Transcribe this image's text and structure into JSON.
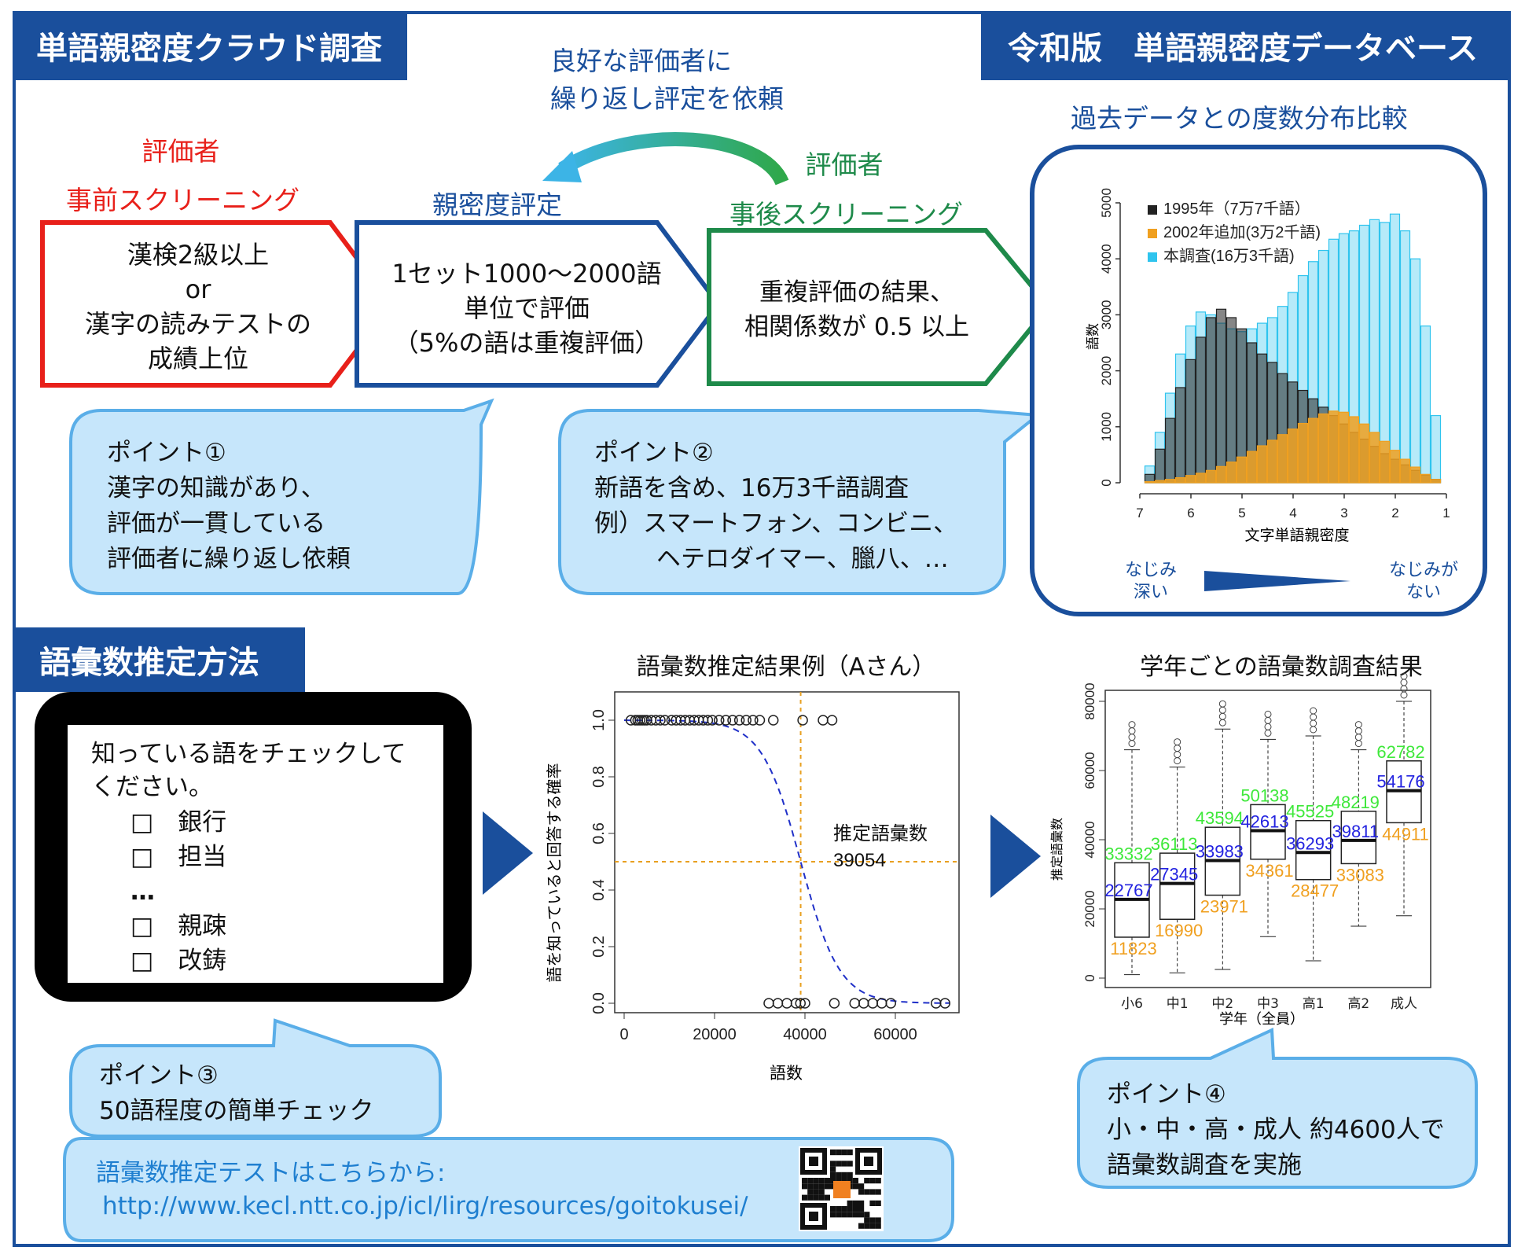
{
  "headers": {
    "crowd_survey": "単語親密度クラウド調査",
    "database": "令和版　単語親密度データベース",
    "vocab_method": "語彙数推定方法"
  },
  "flow": {
    "loop_note": [
      "良好な評価者に",
      "繰り返し評定を依頼"
    ],
    "step1": {
      "label_top": "評価者",
      "label": "事前スクリーニング",
      "lines": [
        "漢検2級以上",
        "or",
        "漢字の読みテストの",
        "成績上位"
      ]
    },
    "step2": {
      "label": "親密度評定",
      "lines": [
        "1セット1000～2000語",
        "単位で評価",
        "（5%の語は重複評価）"
      ]
    },
    "step3": {
      "label_top": "評価者",
      "label": "事後スクリーニング",
      "lines": [
        "重複評価の結果、",
        "相関係数が 0.5 以上"
      ]
    }
  },
  "points": {
    "p1": [
      "ポイント①",
      "漢字の知識があり、",
      "評価が一貫している",
      "評価者に繰り返し依頼"
    ],
    "p2": [
      "ポイント②",
      "新語を含め、16万3千語調査",
      "例）スマートフォン、コンビニ、",
      "　ヘテロダイマー、臘八、…"
    ],
    "p3": [
      "ポイント③",
      "50語程度の簡単チェック"
    ],
    "p4": [
      "ポイント④",
      "小・中・高・成人 約4600人で",
      "語彙数調査を実施"
    ]
  },
  "hist_panel": {
    "caption": "過去データとの度数分布比較",
    "left_note": [
      "なじみ",
      "深い"
    ],
    "right_note": [
      "なじみが",
      "ない"
    ]
  },
  "checklist": {
    "prompt": [
      "知っている語をチェックして",
      "ください。"
    ],
    "items": [
      "□　銀行",
      "□　担当",
      "…",
      "□　親疎",
      "□　改鋳"
    ]
  },
  "link_box": {
    "label": "語彙数推定テストはこちらから:",
    "url": "http://www.kecl.ntt.co.jp/icl/lirg/resources/goitokusei/"
  },
  "colors": {
    "navy": "#1a4f9c",
    "red": "#e8201a",
    "green": "#1e8a4a",
    "callout_fill": "#c6e6fb",
    "callout_border": "#5aaee8",
    "hist_black": "#222222",
    "hist_orange": "#f0a020",
    "hist_cyan": "#2fc4ee"
  },
  "chart_data": [
    {
      "type": "bar",
      "xlabel": "文字単語親密度",
      "ylabel": "語数",
      "x_ticks": [
        "7",
        "6",
        "5",
        "4",
        "3",
        "2",
        "1"
      ],
      "y_ticks": [
        "0",
        "1000",
        "2000",
        "3000",
        "4000",
        "5000"
      ],
      "ylim": [
        0,
        5000
      ],
      "x_reversed": true,
      "legend_position": "top-left",
      "series": [
        {
          "name": "1995年（7万7千語）",
          "color": "#222222",
          "x": [
            6.8,
            6.6,
            6.4,
            6.2,
            6.0,
            5.8,
            5.6,
            5.4,
            5.2,
            5.0,
            4.8,
            4.6,
            4.4,
            4.2,
            4.0,
            3.8,
            3.6,
            3.4,
            3.2,
            3.0,
            2.8,
            2.6,
            2.4,
            2.2,
            2.0,
            1.8,
            1.6,
            1.4,
            1.2
          ],
          "values": [
            150,
            600,
            1150,
            1700,
            2200,
            2600,
            2950,
            3100,
            2950,
            2750,
            2500,
            2300,
            2150,
            1950,
            1800,
            1650,
            1500,
            1350,
            1200,
            1050,
            900,
            780,
            650,
            520,
            420,
            320,
            220,
            140,
            60
          ]
        },
        {
          "name": "2002年追加(3万2千語)",
          "color": "#f0a020",
          "x": [
            6.8,
            6.6,
            6.4,
            6.2,
            6.0,
            5.8,
            5.6,
            5.4,
            5.2,
            5.0,
            4.8,
            4.6,
            4.4,
            4.2,
            4.0,
            3.8,
            3.6,
            3.4,
            3.2,
            3.0,
            2.8,
            2.6,
            2.4,
            2.2,
            2.0,
            1.8,
            1.6,
            1.4,
            1.2
          ],
          "values": [
            20,
            40,
            60,
            90,
            130,
            170,
            220,
            290,
            370,
            460,
            560,
            660,
            760,
            860,
            960,
            1060,
            1150,
            1230,
            1280,
            1260,
            1180,
            1050,
            900,
            740,
            580,
            420,
            280,
            150,
            60
          ]
        },
        {
          "name": "本調査(16万3千語)",
          "color": "#2fc4ee",
          "x": [
            6.8,
            6.6,
            6.4,
            6.2,
            6.0,
            5.8,
            5.6,
            5.4,
            5.2,
            5.0,
            4.8,
            4.6,
            4.4,
            4.2,
            4.0,
            3.8,
            3.6,
            3.4,
            3.2,
            3.0,
            2.8,
            2.6,
            2.4,
            2.2,
            2.0,
            1.8,
            1.6,
            1.4,
            1.2
          ],
          "values": [
            300,
            900,
            1600,
            2300,
            2800,
            3050,
            3000,
            2850,
            2750,
            2700,
            2750,
            2850,
            2950,
            3150,
            3400,
            3700,
            3950,
            4150,
            4350,
            4450,
            4500,
            4600,
            4700,
            4650,
            4800,
            4500,
            4000,
            2800,
            1200
          ]
        }
      ]
    },
    {
      "type": "scatter",
      "title": "語彙数推定結果例（Aさん）",
      "xlabel": "語数",
      "ylabel": "語を知っていると回答する確率",
      "xlim": [
        0,
        70000
      ],
      "ylim": [
        0,
        1
      ],
      "x_ticks": [
        "0",
        "20000",
        "40000",
        "60000"
      ],
      "y_ticks": [
        "0.0",
        "0.2",
        "0.4",
        "0.6",
        "0.8",
        "1.0"
      ],
      "annotation": "推定語彙数",
      "estimate": "39054",
      "known_x": [
        1500,
        2500,
        3000,
        3500,
        4000,
        4500,
        5000,
        6000,
        7000,
        8000,
        9000,
        10500,
        11500,
        12500,
        13500,
        14500,
        15500,
        16500,
        17500,
        18500,
        19500,
        21000,
        22500,
        24000,
        25500,
        27000,
        28500,
        30000,
        33000,
        39500,
        44000,
        46000
      ],
      "unknown_x": [
        32000,
        34000,
        36000,
        38000,
        39000,
        40000,
        46500,
        51000,
        53000,
        55000,
        57000,
        59000,
        69000,
        71000
      ],
      "fit_curve": "logistic, midpoint 39054"
    },
    {
      "type": "box",
      "title": "学年ごとの語彙数調査結果",
      "xlabel": "学年（全員）",
      "ylabel": "推定語彙数",
      "ylim": [
        0,
        80000
      ],
      "y_ticks": [
        "0",
        "20000",
        "40000",
        "60000",
        "80000"
      ],
      "categories": [
        "小6",
        "中1",
        "中2",
        "中3",
        "高1",
        "高2",
        "成人"
      ],
      "q3": [
        33332,
        36113,
        43594,
        50138,
        45525,
        48219,
        62782
      ],
      "median": [
        22767,
        27345,
        33983,
        42613,
        36293,
        39811,
        54176
      ],
      "q1": [
        11823,
        16990,
        23971,
        34361,
        28477,
        33083,
        44911
      ],
      "q3_labels": [
        "33332",
        "36113",
        "43594",
        "50138",
        "45525",
        "48219",
        "62782"
      ],
      "median_labels": [
        "22767",
        "27345",
        "33983",
        "42613",
        "36293",
        "39811",
        "54176"
      ],
      "q1_labels": [
        "11823",
        "16990",
        "23971",
        "34361",
        "28477",
        "33083",
        "44911"
      ]
    }
  ]
}
